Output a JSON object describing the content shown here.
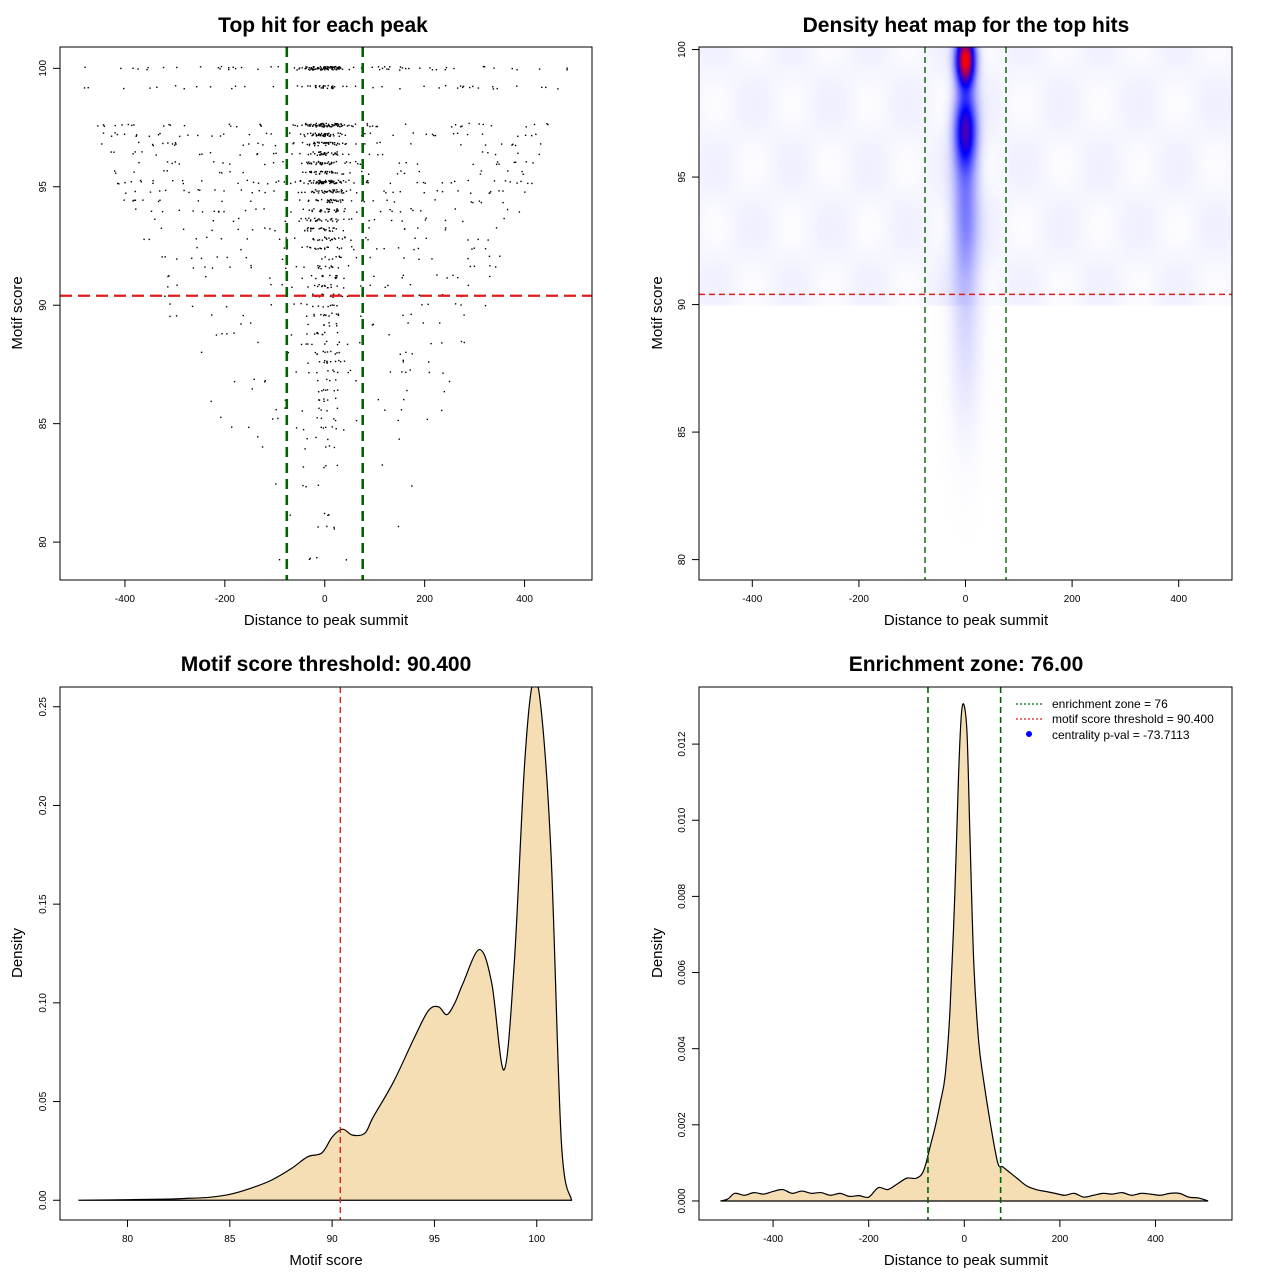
{
  "colors": {
    "threshold_line": "#dd1c1c",
    "zone_line": "#006400",
    "density_fill": "#f5deb3",
    "heat_low": "#ffffff",
    "heat_mid": "#0000ff",
    "heat_high": "#ff0000",
    "legend_point": "#0000ff"
  },
  "chart_data": [
    {
      "id": "scatter",
      "type": "scatter",
      "title": "Top hit for each peak",
      "xlabel": "Distance to peak summit",
      "ylabel": "Motif score",
      "xlim": [
        -530,
        535
      ],
      "ylim": [
        78.4,
        100.9
      ],
      "xticks": [
        -400,
        -200,
        0,
        200,
        400
      ],
      "xtick_labels": [
        "-400",
        "-200",
        "0",
        "200",
        "400"
      ],
      "yticks": [
        80,
        85,
        90,
        95,
        100
      ],
      "ytick_labels": [
        "80",
        "85",
        "90",
        "95",
        "100"
      ],
      "threshold": 90.4,
      "enrichment_zone": 76,
      "score_levels": [
        100.0,
        99.2,
        97.6,
        97.2,
        96.8,
        96.4,
        96.0,
        95.6,
        95.2,
        94.8,
        94.4,
        94.0,
        93.6,
        93.2,
        92.8,
        92.4,
        92.0,
        91.6,
        91.2,
        90.8,
        90.4,
        90.0,
        89.6,
        89.2,
        88.8,
        88.4,
        88.0,
        87.6,
        87.2,
        86.8,
        86.4,
        86.0,
        85.6,
        85.2,
        84.8,
        84.4,
        84.0,
        83.2,
        82.4,
        81.2,
        80.6,
        79.3
      ],
      "level_weights": [
        26,
        12,
        22,
        16,
        13,
        11,
        12,
        10,
        20,
        14,
        10,
        10,
        8,
        8,
        7,
        6,
        5,
        5,
        5,
        5,
        5,
        4,
        4,
        3,
        3,
        3,
        3,
        3,
        3,
        2,
        2,
        2,
        2,
        2,
        2,
        1,
        1,
        1,
        1,
        1,
        1,
        1
      ],
      "x_spread_at_100": 220,
      "x_spread_at_80": 60,
      "center_fraction": 0.5,
      "point_count": 1400
    },
    {
      "id": "heatmap",
      "type": "heatmap",
      "title": "Density heat map for the top hits",
      "xlabel": "Distance to peak summit",
      "ylabel": "Motif score",
      "xlim": [
        -500,
        500
      ],
      "ylim": [
        79.2,
        100.1
      ],
      "xticks": [
        -400,
        -200,
        0,
        200,
        400
      ],
      "xtick_labels": [
        "-400",
        "-200",
        "0",
        "200",
        "400"
      ],
      "yticks": [
        80,
        85,
        90,
        95,
        100
      ],
      "ytick_labels": [
        "80",
        "85",
        "90",
        "95",
        "100"
      ],
      "threshold": 90.4,
      "enrichment_zone": 76,
      "hotspots": [
        {
          "x": 0,
          "y": 99.6,
          "sx": 12,
          "sy": 0.7,
          "w": 1.0
        },
        {
          "x": 0,
          "y": 96.9,
          "sx": 14,
          "sy": 1.0,
          "w": 0.55
        },
        {
          "x": 0,
          "y": 94.0,
          "sx": 16,
          "sy": 2.0,
          "w": 0.22
        },
        {
          "x": 0,
          "y": 89.5,
          "sx": 20,
          "sy": 3.0,
          "w": 0.07
        }
      ],
      "background_density": 0.03
    },
    {
      "id": "score-density",
      "type": "area",
      "title": "Motif score threshold: 90.400",
      "xlabel": "Motif score",
      "ylabel": "Density",
      "xlim": [
        76.7,
        102.7
      ],
      "ylim": [
        -0.01,
        0.26
      ],
      "xticks": [
        80,
        85,
        90,
        95,
        100
      ],
      "xtick_labels": [
        "80",
        "85",
        "90",
        "95",
        "100"
      ],
      "yticks": [
        0.0,
        0.05,
        0.1,
        0.15,
        0.2,
        0.25
      ],
      "ytick_labels": [
        "0.00",
        "0.05",
        "0.10",
        "0.15",
        "0.20",
        "0.25"
      ],
      "threshold": 90.4,
      "x": [
        77.6,
        80,
        82,
        83,
        84,
        85,
        86,
        87,
        88,
        88.8,
        89.5,
        90,
        90.5,
        91,
        91.6,
        92,
        93,
        94,
        94.7,
        95.2,
        95.6,
        96,
        96.4,
        97.2,
        97.8,
        98.4,
        98.9,
        99.4,
        99.8,
        100.2,
        100.7,
        101.2,
        101.7
      ],
      "y": [
        0.0,
        0.0003,
        0.0006,
        0.001,
        0.0015,
        0.003,
        0.006,
        0.01,
        0.016,
        0.022,
        0.024,
        0.032,
        0.036,
        0.033,
        0.034,
        0.042,
        0.06,
        0.082,
        0.096,
        0.098,
        0.094,
        0.1,
        0.11,
        0.127,
        0.11,
        0.066,
        0.12,
        0.22,
        0.262,
        0.25,
        0.175,
        0.03,
        0.0
      ]
    },
    {
      "id": "distance-density",
      "type": "area",
      "title": "Enrichment zone: 76.00",
      "xlabel": "Distance to peak summit",
      "ylabel": "Density",
      "xlim": [
        -555,
        560
      ],
      "ylim": [
        -0.0005,
        0.0135
      ],
      "xticks": [
        -400,
        -200,
        0,
        200,
        400
      ],
      "xtick_labels": [
        "-400",
        "-200",
        "0",
        "200",
        "400"
      ],
      "yticks": [
        0.0,
        0.002,
        0.004,
        0.006,
        0.008,
        0.01,
        0.012
      ],
      "ytick_labels": [
        "0.000",
        "0.002",
        "0.004",
        "0.006",
        "0.008",
        "0.010",
        "0.012"
      ],
      "enrichment_zone": 76,
      "x": [
        -510,
        -495,
        -480,
        -460,
        -440,
        -420,
        -400,
        -380,
        -360,
        -340,
        -320,
        -300,
        -280,
        -260,
        -240,
        -220,
        -200,
        -180,
        -160,
        -140,
        -120,
        -100,
        -85,
        -70,
        -60,
        -50,
        -40,
        -30,
        -20,
        -12,
        -6,
        0,
        6,
        12,
        20,
        30,
        40,
        55,
        70,
        80,
        90,
        110,
        130,
        150,
        170,
        190,
        210,
        230,
        250,
        270,
        290,
        310,
        330,
        350,
        370,
        390,
        410,
        430,
        450,
        470,
        490,
        510
      ],
      "y": [
        0.0,
        5e-05,
        0.0002,
        0.00015,
        0.00022,
        0.00018,
        0.00025,
        0.0003,
        0.0002,
        0.00026,
        0.0002,
        0.00022,
        0.00015,
        0.0002,
        0.00012,
        0.00014,
        0.0001,
        0.00035,
        0.0003,
        0.00045,
        0.0006,
        0.0006,
        0.0008,
        0.0015,
        0.002,
        0.0026,
        0.0033,
        0.005,
        0.008,
        0.0112,
        0.0128,
        0.013,
        0.0122,
        0.0095,
        0.0062,
        0.0042,
        0.0032,
        0.002,
        0.001,
        0.0009,
        0.0008,
        0.0006,
        0.0004,
        0.0003,
        0.00025,
        0.0002,
        0.00015,
        0.0002,
        0.0001,
        0.00015,
        0.0002,
        0.00018,
        0.00022,
        0.00015,
        0.0002,
        0.00018,
        0.00015,
        0.0002,
        0.0002,
        0.0001,
        8e-05,
        0.0
      ]
    }
  ],
  "legend": {
    "zone": "enrichment zone = 76",
    "threshold": "motif score threshold = 90.400",
    "pval": "centrality p-val = -73.7113"
  }
}
